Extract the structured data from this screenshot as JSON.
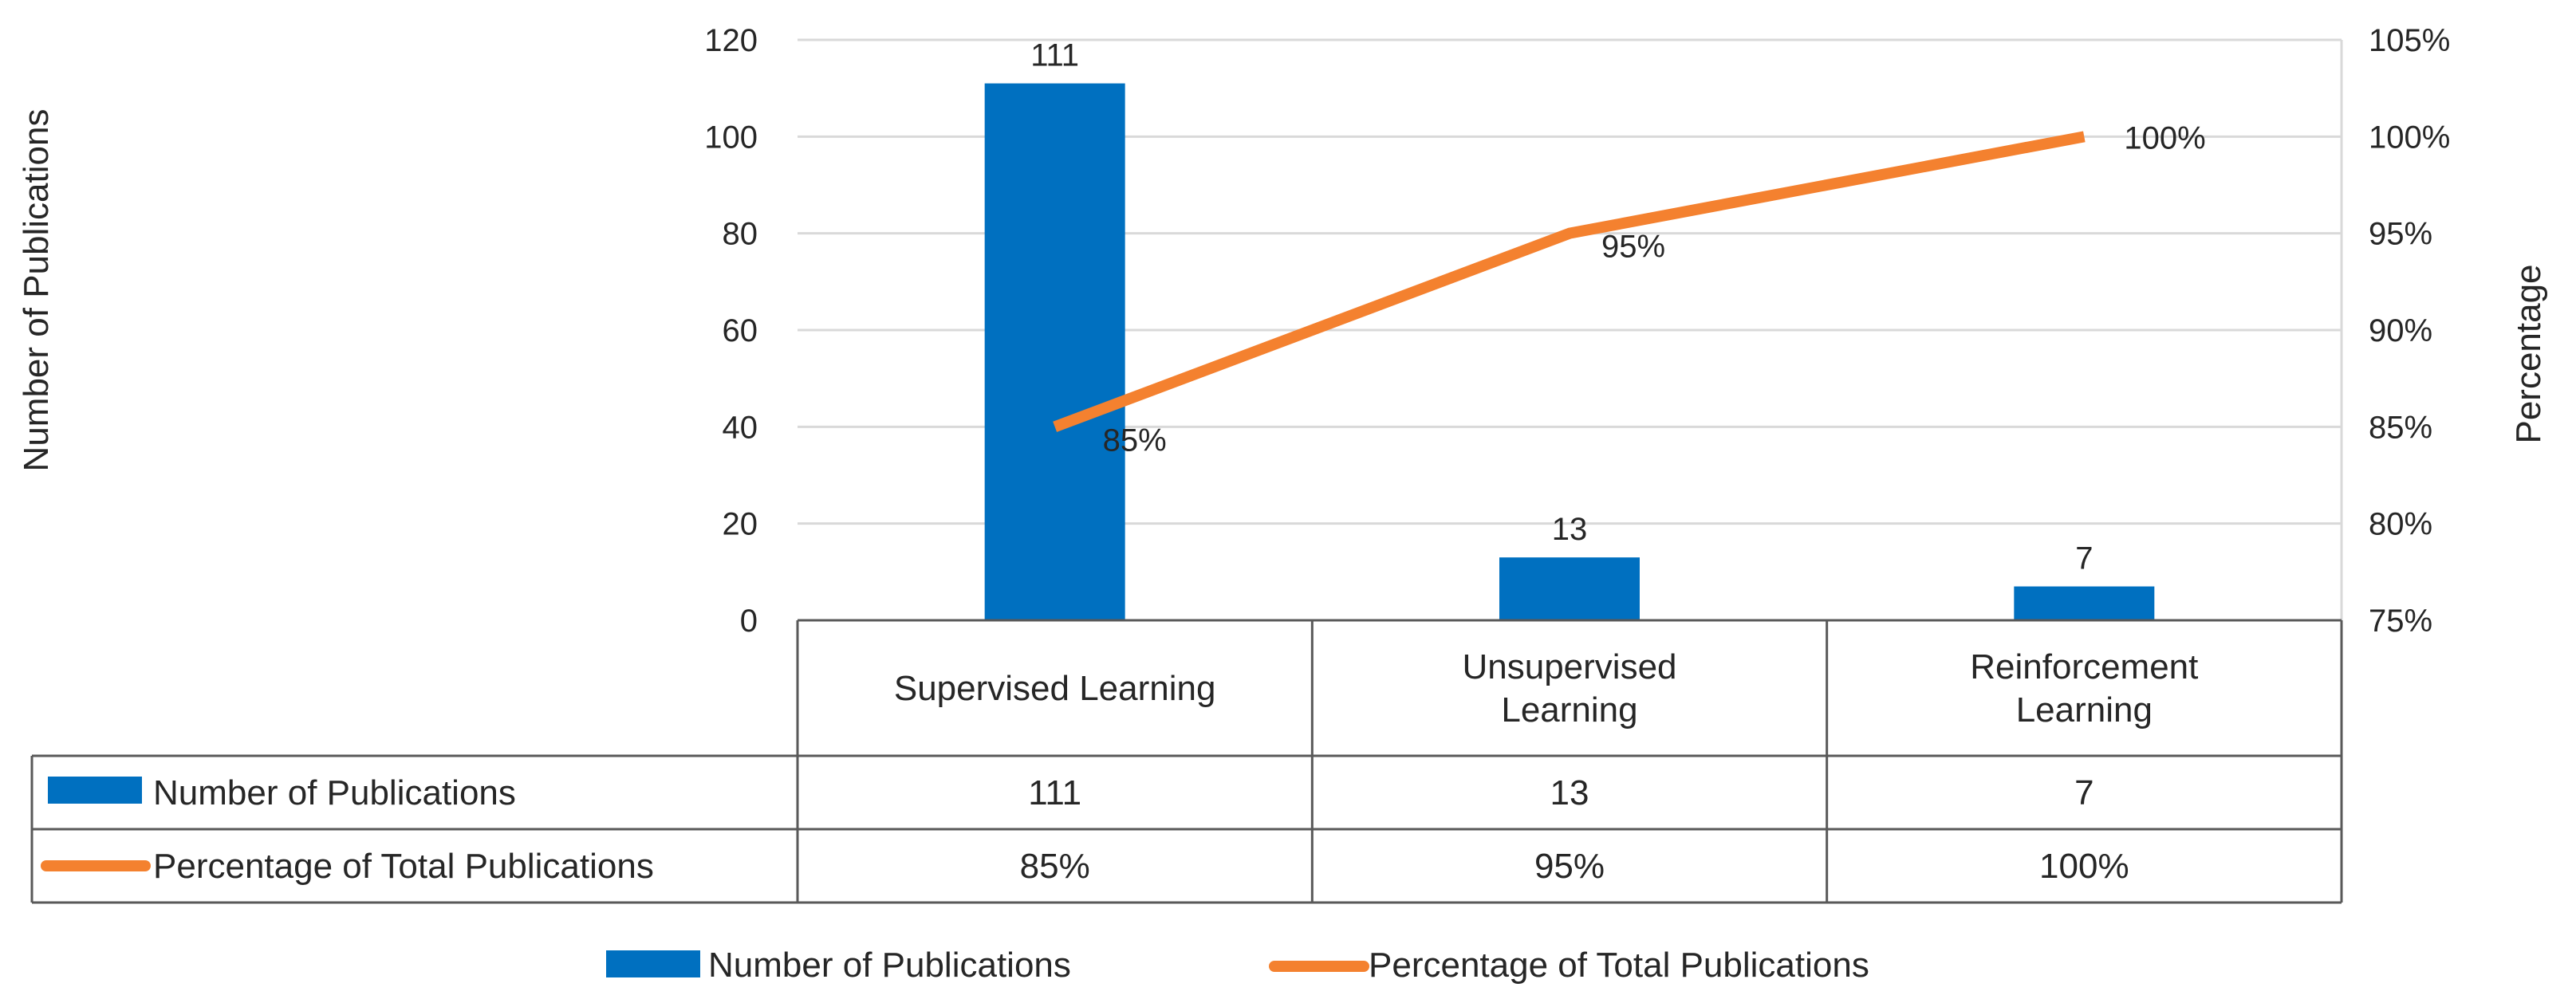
{
  "chart_data": {
    "type": "bar",
    "categories": [
      "Supervised Learning",
      "Unsupervised Learning",
      "Reinforcement Learning"
    ],
    "category_lines": [
      [
        "Supervised Learning"
      ],
      [
        "Unsupervised",
        "Learning"
      ],
      [
        "Reinforcement",
        "Learning"
      ]
    ],
    "series": [
      {
        "name": "Number of Publications",
        "type": "bar",
        "axis": "left",
        "values": [
          111,
          13,
          7
        ],
        "labels": [
          "111",
          "13",
          "7"
        ],
        "color": "#0070C0"
      },
      {
        "name": "Percentage of Total Publications",
        "type": "line",
        "axis": "right",
        "values": [
          85,
          95,
          100
        ],
        "labels": [
          "85%",
          "95%",
          "100%"
        ],
        "color": "#F4812F"
      }
    ],
    "ylabel": "Number of Publications",
    "ylabel_right": "Percentage",
    "ylim": [
      0,
      120
    ],
    "y_ticks": [
      "0",
      "20",
      "40",
      "60",
      "80",
      "100",
      "120"
    ],
    "ylim_right": [
      75,
      105
    ],
    "y_ticks_right": [
      "75%",
      "80%",
      "85%",
      "90%",
      "95%",
      "100%",
      "105%"
    ],
    "grid": true,
    "data_table": true,
    "legend_position": "bottom"
  }
}
